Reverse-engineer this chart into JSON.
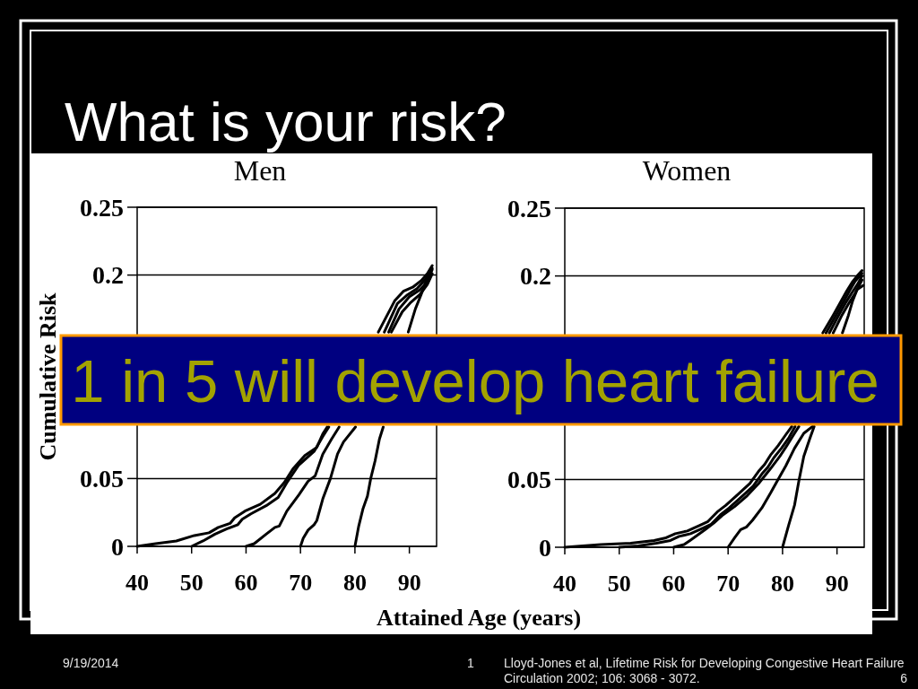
{
  "chart_data": [
    {
      "type": "line",
      "title": "Men",
      "xlabel": "Attained Age (years)",
      "ylabel": "Cumulative Risk",
      "xlim": [
        40,
        95
      ],
      "xticks": [
        40,
        50,
        60,
        70,
        80,
        90
      ],
      "ylim": [
        0,
        0.25
      ],
      "yticks": [
        0,
        0.05,
        0.2,
        0.25
      ],
      "grid": "y",
      "annotations": [
        "What is your risk?",
        "1 in 5 will develop heart failure",
        "9/19/2014",
        "1",
        "Lloyd-Jones et al, Lifetime Risk for Developing Congestive Heart Failure",
        "Circulation 2002; 106: 3068 - 3072.",
        "6"
      ],
      "series": [
        {
          "color": "#000000",
          "x": [
            40,
            43.4,
            47.2,
            50.5,
            53.2,
            54.9,
            57.1,
            57.9,
            59.8,
            62.6,
            65.3,
            67,
            68.6,
            70.8,
            73,
            74.1,
            74.9,
            80,
            84.3,
            87.3,
            88.9,
            90.6,
            92.2,
            93.3,
            94.2
          ],
          "values": [
            0,
            0.002,
            0.004,
            0.008,
            0.01,
            0.014,
            0.017,
            0.021,
            0.026,
            0.031,
            0.039,
            0.047,
            0.057,
            0.067,
            0.073,
            0.083,
            0.088,
            null,
            0.158,
            0.181,
            0.188,
            0.191,
            0.196,
            0.201,
            0.207
          ]
        },
        {
          "color": "#000000",
          "x": [
            50,
            52.1,
            54.3,
            56.5,
            58.5,
            59.3,
            60.9,
            63.7,
            65.9,
            67.5,
            69.7,
            72.5,
            74.1,
            75.2,
            80,
            85.4,
            87.8,
            89.5,
            91.4,
            93,
            94.2
          ],
          "values": [
            0,
            0.004,
            0.009,
            0.013,
            0.016,
            0.02,
            0.024,
            0.03,
            0.036,
            0.047,
            0.06,
            0.07,
            0.081,
            0.088,
            null,
            0.158,
            0.179,
            0.185,
            0.19,
            0.197,
            0.205
          ]
        },
        {
          "color": "#000000",
          "x": [
            60,
            61.5,
            63.7,
            65.3,
            66.1,
            67.5,
            69.7,
            71.4,
            72.7,
            74.1,
            75.7,
            77.1,
            82,
            86.2,
            88.1,
            90,
            91.9,
            93.3,
            94.2
          ],
          "values": [
            0,
            0.002,
            0.009,
            0.014,
            0.015,
            0.026,
            0.038,
            0.048,
            0.052,
            0.068,
            0.079,
            0.088,
            null,
            0.158,
            0.175,
            0.184,
            0.189,
            0.195,
            0.204
          ]
        },
        {
          "color": "#000000",
          "x": [
            70,
            70.5,
            71.4,
            72.5,
            73,
            74.1,
            75.5,
            76.8,
            77.9,
            80.1,
            83,
            86.7,
            88.7,
            90.3,
            92,
            93.3,
            94.2
          ],
          "values": [
            0,
            0.006,
            0.012,
            0.016,
            0.019,
            0.035,
            0.05,
            0.068,
            0.077,
            0.088,
            null,
            0.158,
            0.173,
            0.18,
            0.186,
            0.193,
            0.201
          ]
        },
        {
          "color": "#000000",
          "x": [
            80,
            80.7,
            81.5,
            82.3,
            82.9,
            83.7,
            84.5,
            85.2,
            87.5,
            89.8,
            91.1,
            92.2,
            93,
            93.9
          ],
          "values": [
            0,
            0.015,
            0.028,
            0.037,
            0.05,
            0.063,
            0.079,
            0.088,
            null,
            0.158,
            0.175,
            0.186,
            0.195,
            0.202
          ]
        }
      ]
    },
    {
      "type": "line",
      "title": "Women",
      "xlim": [
        40,
        95
      ],
      "xticks": [
        40,
        50,
        60,
        70,
        80,
        90
      ],
      "ylim": [
        0,
        0.25
      ],
      "yticks": [
        0,
        0.05,
        0.2,
        0.25
      ],
      "grid": "y",
      "series": [
        {
          "color": "#000000",
          "x": [
            40,
            46.6,
            52.1,
            56.4,
            58.6,
            60.3,
            62.5,
            64.7,
            66.3,
            68,
            69.6,
            71.8,
            74,
            75.6,
            76.7,
            77.8,
            79.2,
            80.6,
            81.7,
            84.5,
            87.4,
            89.3,
            90.7,
            91.8,
            92.9,
            93.7,
            94.6
          ],
          "values": [
            0,
            0.002,
            0.003,
            0.005,
            0.007,
            0.01,
            0.012,
            0.016,
            0.019,
            0.026,
            0.031,
            0.039,
            0.047,
            0.056,
            0.061,
            0.068,
            0.075,
            0.083,
            0.089,
            null,
            0.158,
            0.171,
            0.181,
            0.189,
            0.196,
            0.2,
            0.204
          ]
        },
        {
          "color": "#000000",
          "x": [
            50,
            53.5,
            56.8,
            59.4,
            61,
            63.1,
            65.3,
            66.9,
            68.6,
            70.2,
            72.4,
            74.6,
            76.2,
            77.3,
            78.4,
            79.8,
            81.2,
            82.3,
            85,
            88,
            89.8,
            91.2,
            92.3,
            93.3,
            94.6
          ],
          "values": [
            0,
            0.001,
            0.003,
            0.005,
            0.008,
            0.01,
            0.014,
            0.017,
            0.024,
            0.029,
            0.037,
            0.045,
            0.054,
            0.059,
            0.066,
            0.073,
            0.081,
            0.089,
            null,
            0.158,
            0.171,
            0.181,
            0.189,
            0.196,
            0.202
          ]
        },
        {
          "color": "#000000",
          "x": [
            60,
            61.9,
            63,
            65.8,
            67.4,
            69.1,
            71.2,
            73.5,
            75.6,
            77.8,
            79.5,
            80.8,
            82.2,
            83,
            85.5,
            88.6,
            90.3,
            91.7,
            92.8,
            93.8,
            94.6
          ],
          "values": [
            0,
            0.002,
            0.005,
            0.013,
            0.018,
            0.024,
            0.03,
            0.038,
            0.047,
            0.058,
            0.067,
            0.075,
            0.084,
            0.089,
            null,
            0.158,
            0.171,
            0.181,
            0.188,
            0.194,
            0.2
          ]
        },
        {
          "color": "#000000",
          "x": [
            70,
            71.2,
            72.3,
            73.4,
            74.5,
            76.2,
            77.8,
            78.9,
            80.6,
            82.2,
            83.9,
            85.5,
            87,
            89.3,
            90.9,
            92.2,
            93.3,
            94.6
          ],
          "values": [
            0,
            0.007,
            0.013,
            0.015,
            0.02,
            0.029,
            0.04,
            0.048,
            0.06,
            0.073,
            0.084,
            0.089,
            null,
            0.158,
            0.171,
            0.18,
            0.187,
            0.197
          ]
        },
        {
          "color": "#000000",
          "x": [
            80,
            81.1,
            82.2,
            83,
            83.9,
            85,
            85.8,
            88.5,
            91,
            92.1,
            92.9,
            93.7,
            94.8
          ],
          "values": [
            0,
            0.016,
            0.031,
            0.049,
            0.067,
            0.08,
            0.089,
            null,
            0.158,
            0.171,
            0.182,
            0.19,
            0.193
          ]
        }
      ]
    }
  ]
}
